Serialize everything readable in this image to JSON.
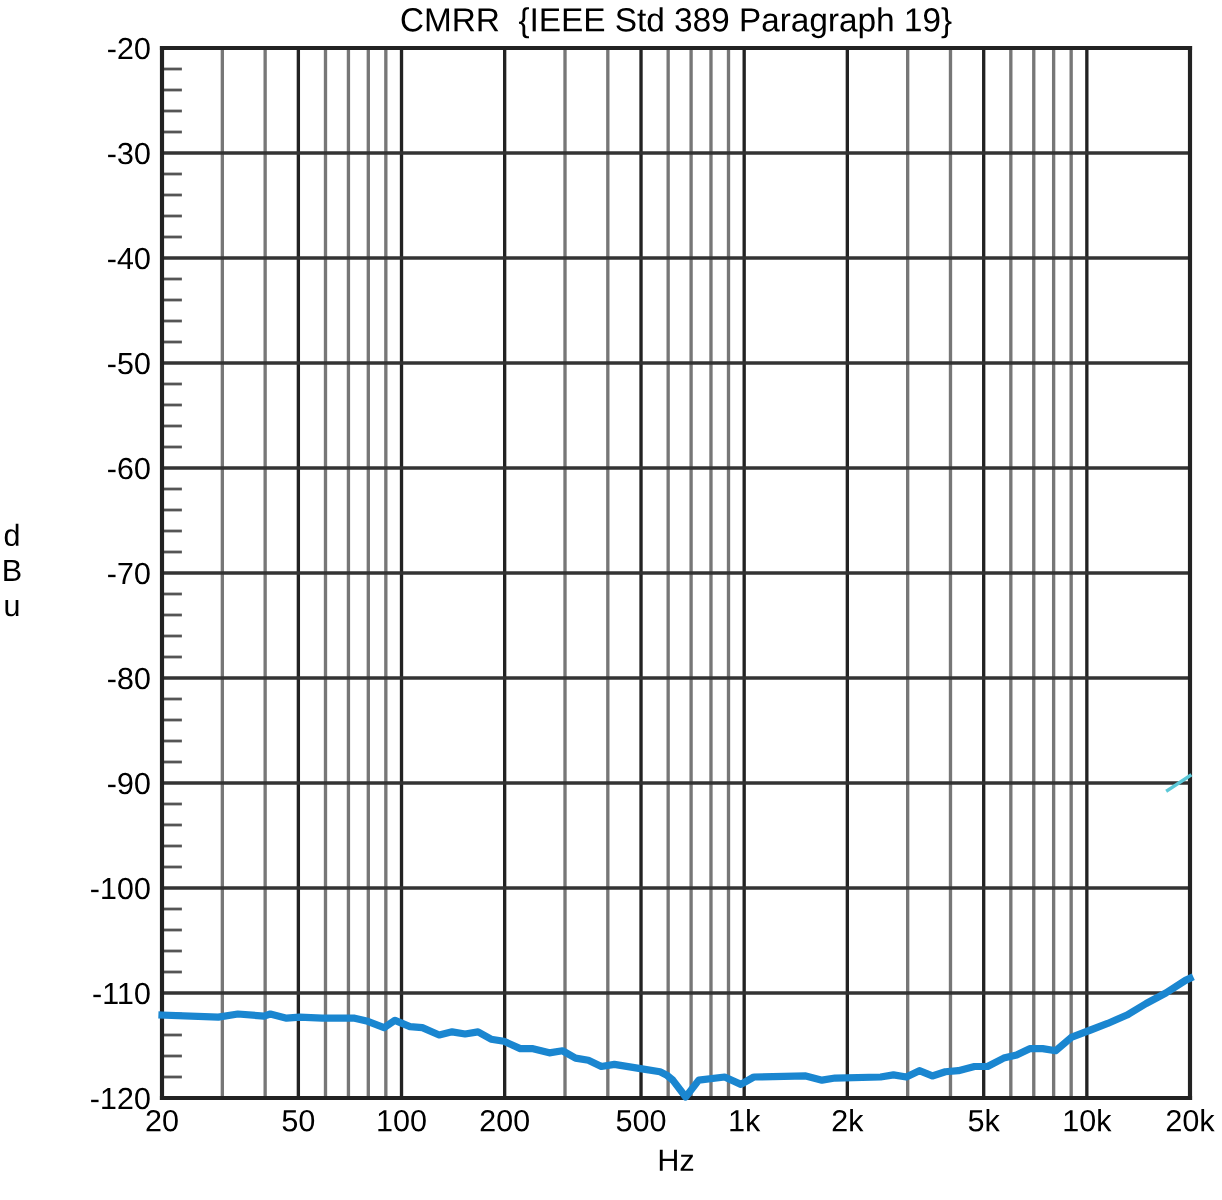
{
  "chart_data": {
    "type": "line",
    "title": "CMRR  {IEEE Std 389 Paragraph 19}",
    "xlabel": "Hz",
    "ylabel": "dBu",
    "log": "x",
    "grid": true,
    "legend": false,
    "marker": "none",
    "line_style": "solid",
    "xlim": [
      20,
      20000
    ],
    "ylim": [
      -120,
      -20
    ],
    "xticks": [
      20,
      {
        "value": 30,
        "label": null
      },
      {
        "value": 40,
        "label": null
      },
      50,
      {
        "value": 60,
        "label": null
      },
      {
        "value": 70,
        "label": null
      },
      {
        "value": 80,
        "label": null
      },
      {
        "value": 90,
        "label": null
      },
      100,
      200,
      {
        "value": 300,
        "label": null
      },
      {
        "value": 400,
        "label": null
      },
      500,
      {
        "value": 600,
        "label": null
      },
      {
        "value": 700,
        "label": null
      },
      {
        "value": 800,
        "label": null
      },
      {
        "value": 900,
        "label": null
      },
      {
        "value": 1000,
        "label": "1k"
      },
      {
        "value": 2000,
        "label": "2k"
      },
      {
        "value": 3000,
        "label": null
      },
      {
        "value": 4000,
        "label": null
      },
      {
        "value": 5000,
        "label": "5k"
      },
      {
        "value": 6000,
        "label": null
      },
      {
        "value": 7000,
        "label": null
      },
      {
        "value": 8000,
        "label": null
      },
      {
        "value": 9000,
        "label": null
      },
      {
        "value": 10000,
        "label": "10k"
      },
      {
        "value": 20000,
        "label": "20k"
      }
    ],
    "yticks": [
      -120,
      {
        "value": -118,
        "label": null
      },
      {
        "value": -116,
        "label": null
      },
      {
        "value": -114,
        "label": null
      },
      {
        "value": -112,
        "label": null
      },
      -110,
      {
        "value": -108,
        "label": null
      },
      {
        "value": -106,
        "label": null
      },
      {
        "value": -104,
        "label": null
      },
      {
        "value": -102,
        "label": null
      },
      -100,
      {
        "value": -98,
        "label": null
      },
      {
        "value": -96,
        "label": null
      },
      {
        "value": -94,
        "label": null
      },
      {
        "value": -92,
        "label": null
      },
      -90,
      {
        "value": -88,
        "label": null
      },
      {
        "value": -86,
        "label": null
      },
      {
        "value": -84,
        "label": null
      },
      {
        "value": -82,
        "label": null
      },
      -80,
      {
        "value": -78,
        "label": null
      },
      {
        "value": -76,
        "label": null
      },
      {
        "value": -74,
        "label": null
      },
      {
        "value": -72,
        "label": null
      },
      -70,
      {
        "value": -68,
        "label": null
      },
      {
        "value": -66,
        "label": null
      },
      {
        "value": -64,
        "label": null
      },
      {
        "value": -62,
        "label": null
      },
      -60,
      {
        "value": -58,
        "label": null
      },
      {
        "value": -56,
        "label": null
      },
      {
        "value": -54,
        "label": null
      },
      {
        "value": -52,
        "label": null
      },
      -50,
      {
        "value": -48,
        "label": null
      },
      {
        "value": -46,
        "label": null
      },
      {
        "value": -44,
        "label": null
      },
      {
        "value": -42,
        "label": null
      },
      -40,
      {
        "value": -38,
        "label": null
      },
      {
        "value": -36,
        "label": null
      },
      {
        "value": -34,
        "label": null
      },
      {
        "value": -32,
        "label": null
      },
      -30,
      {
        "value": -28,
        "label": null
      },
      {
        "value": -26,
        "label": null
      },
      {
        "value": -24,
        "label": null
      },
      {
        "value": -22,
        "label": null
      },
      -20
    ],
    "series": [
      {
        "color": "#1a86d0",
        "x": [
          20,
          29.2,
          33.3,
          39.7,
          41.4,
          46.2,
          50.4,
          58.7,
          73,
          79.7,
          88.9,
          95.7,
          105.8,
          115,
          128.8,
          140.5,
          153.3,
          167.2,
          182.5,
          199,
          222,
          242,
          270,
          295,
          322,
          351,
          383,
          418,
          498,
          568,
          593,
          619,
          675,
          737,
          877,
          978,
          1067,
          1513,
          1687,
          1842,
          2500,
          2727,
          2973,
          3245,
          3540,
          3864,
          4217,
          4700,
          5130,
          5720,
          6240,
          6810,
          7430,
          8110,
          9040,
          10300,
          11500,
          13100,
          14900,
          17000,
          19400,
          20000
        ],
        "values": [
          -112.1,
          -112.3,
          -112.0,
          -112.2,
          -112.0,
          -112.4,
          -112.3,
          -112.4,
          -112.4,
          -112.7,
          -113.3,
          -112.6,
          -113.2,
          -113.3,
          -114.0,
          -113.7,
          -113.9,
          -113.7,
          -114.4,
          -114.6,
          -115.3,
          -115.3,
          -115.7,
          -115.5,
          -116.2,
          -116.4,
          -117.0,
          -116.8,
          -117.2,
          -117.5,
          -117.8,
          -118.3,
          -119.9,
          -118.3,
          -118.0,
          -118.7,
          -118.0,
          -117.9,
          -118.3,
          -118.1,
          -118.0,
          -117.8,
          -118.0,
          -117.4,
          -117.9,
          -117.5,
          -117.4,
          -117.0,
          -117.0,
          -116.2,
          -115.9,
          -115.3,
          -115.3,
          -115.5,
          -114.2,
          -113.5,
          -112.9,
          -112.1,
          -111.0,
          -110.0,
          -108.8,
          -108.6
        ]
      },
      {
        "color": "#5bc8d8",
        "x": [
          17200,
          20000
        ],
        "values": [
          -90.7,
          -89.3
        ]
      }
    ]
  }
}
